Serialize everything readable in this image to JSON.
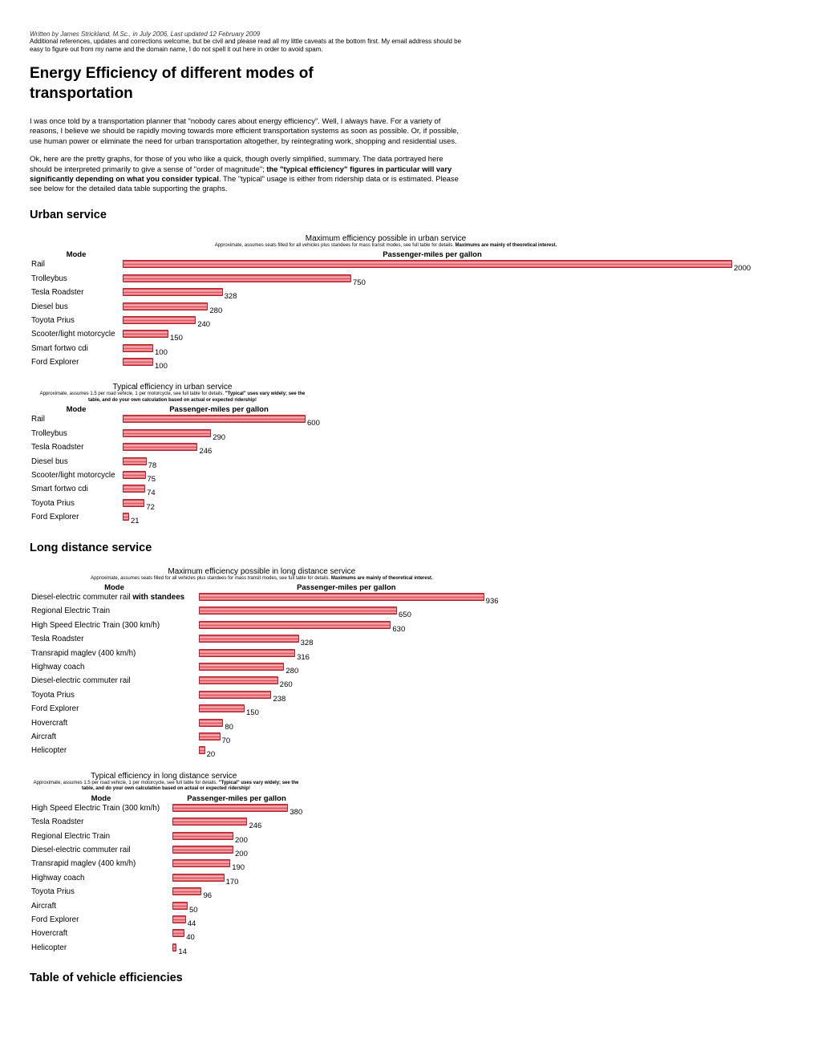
{
  "byline": "Written by James Strickland, M.Sc., in July 2006, Last updated 12 February 2009",
  "note": "Additional references, updates and corrections welcome, but be civil and please read all my little caveats at the bottom first. My email address should be easy to figure out from my name and the domain name, I do not spell it out here in order to avoid spam.",
  "title": "Energy Efficiency of different modes of transportation",
  "paragraphs": [
    [
      {
        "text": "I was once told by a transportation planner that \"nobody cares about energy efficiency\". Well, I always have. For a variety of reasons, I believe we should be rapidly moving towards more efficient transportation systems as soon as possible. Or, if possible, use human power or eliminate the need for urban transportation altogether, by reintegrating work, shopping and residential uses.",
        "bold": false
      }
    ],
    [
      {
        "text": "Ok, here are the pretty graphs, for those of you who like a quick, though overly simplified, summary. The data portrayed here should be interpreted primarily to give a sense of \"order of magnitude\"; ",
        "bold": false
      },
      {
        "text": "the \"typical efficiency\" figures in particular will vary significantly depending on what you consider typical",
        "bold": true
      },
      {
        "text": ". The \"typical\" usage is either from ridership data or is estimated. Please see below for the detailed data table supporting the graphs.",
        "bold": false
      }
    ]
  ],
  "sections": [
    {
      "heading": "Urban service",
      "charts": [
        {
          "type": "bar",
          "title": "Maximum efficiency possible in urban service",
          "subtitle": "Approximate, assumes seats filled for all vehicles plus standees for mass transit modes, see full table for details.",
          "subtitle_bold": "Maximums are mainly of theoretical interest.",
          "headers": [
            "Mode",
            "Passenger-miles per gallon"
          ],
          "categories": [
            "Rail",
            "Trolleybus",
            "Tesla Roadster",
            "Diesel bus",
            "Toyota Prius",
            "Scooter/light motorcycle",
            "Smart fortwo cdi",
            "Ford Explorer"
          ],
          "values": [
            2000,
            750,
            328,
            280,
            240,
            150,
            100,
            100
          ]
        },
        {
          "type": "bar",
          "title": "Typical efficiency in urban service",
          "subtitle": "Approximate, assumes 1.5 per road vehicle, 1 per motorcycle, see full table for details.",
          "subtitle_bold": "\"Typical\" uses vary widely; see the table, and do your own calculation based on actual or expected ridership!",
          "headers": [
            "Mode",
            "Passenger-miles per gallon"
          ],
          "categories": [
            "Rail",
            "Trolleybus",
            "Tesla Roadster",
            "Diesel bus",
            "Scooter/light motorcycle",
            "Smart fortwo cdi",
            "Toyota Prius",
            "Ford Explorer"
          ],
          "values": [
            600,
            290,
            246,
            78,
            75,
            74,
            72,
            21
          ]
        }
      ]
    },
    {
      "heading": "Long distance service",
      "charts": [
        {
          "type": "bar",
          "title": "Maximum efficiency possible in long distance service",
          "subtitle": "Approximate, assumes seats filled for all vehicles plus standees for mass transit modes, see full table for details.",
          "subtitle_bold": "Maximums are mainly of theoretical interest.",
          "headers": [
            "Mode",
            "Passenger-miles per gallon"
          ],
          "categories": [
            {
              "text": "Diesel-electric commuter rail",
              "bold": "with standees"
            },
            "Regional Electric Train",
            "High Speed Electric Train (300 km/h)",
            "Tesla Roadster",
            "Transrapid maglev (400 km/h)",
            "Highway coach",
            "Diesel-electric commuter rail",
            "Toyota Prius",
            "Ford Explorer",
            "Hovercraft",
            "Aircraft",
            "Helicopter"
          ],
          "values": [
            936,
            650,
            630,
            328,
            316,
            280,
            260,
            238,
            150,
            80,
            70,
            20
          ]
        },
        {
          "type": "bar",
          "title": "Typical efficiency in long distance service",
          "subtitle": "Approximate, assumes 1.5 per road vehicle, 1 per motorcycle, see full table for details.",
          "subtitle_bold": "\"Typical\" uses vary widely; see the table, and do your own calculation based on actual or expected ridership!",
          "headers": [
            "Mode",
            "Passenger-miles per gallon"
          ],
          "categories": [
            "High Speed Electric Train (300 km/h)",
            "Tesla Roadster",
            "Regional Electric Train",
            "Diesel-electric commuter rail",
            "Transrapid maglev (400 km/h)",
            "Highway coach",
            "Toyota Prius",
            "Aircraft",
            "Ford Explorer",
            "Hovercraft",
            "Helicopter"
          ],
          "values": [
            380,
            246,
            200,
            200,
            190,
            170,
            96,
            50,
            44,
            40,
            14
          ]
        }
      ]
    }
  ],
  "final_heading": "Table of vehicle efficiencies"
}
